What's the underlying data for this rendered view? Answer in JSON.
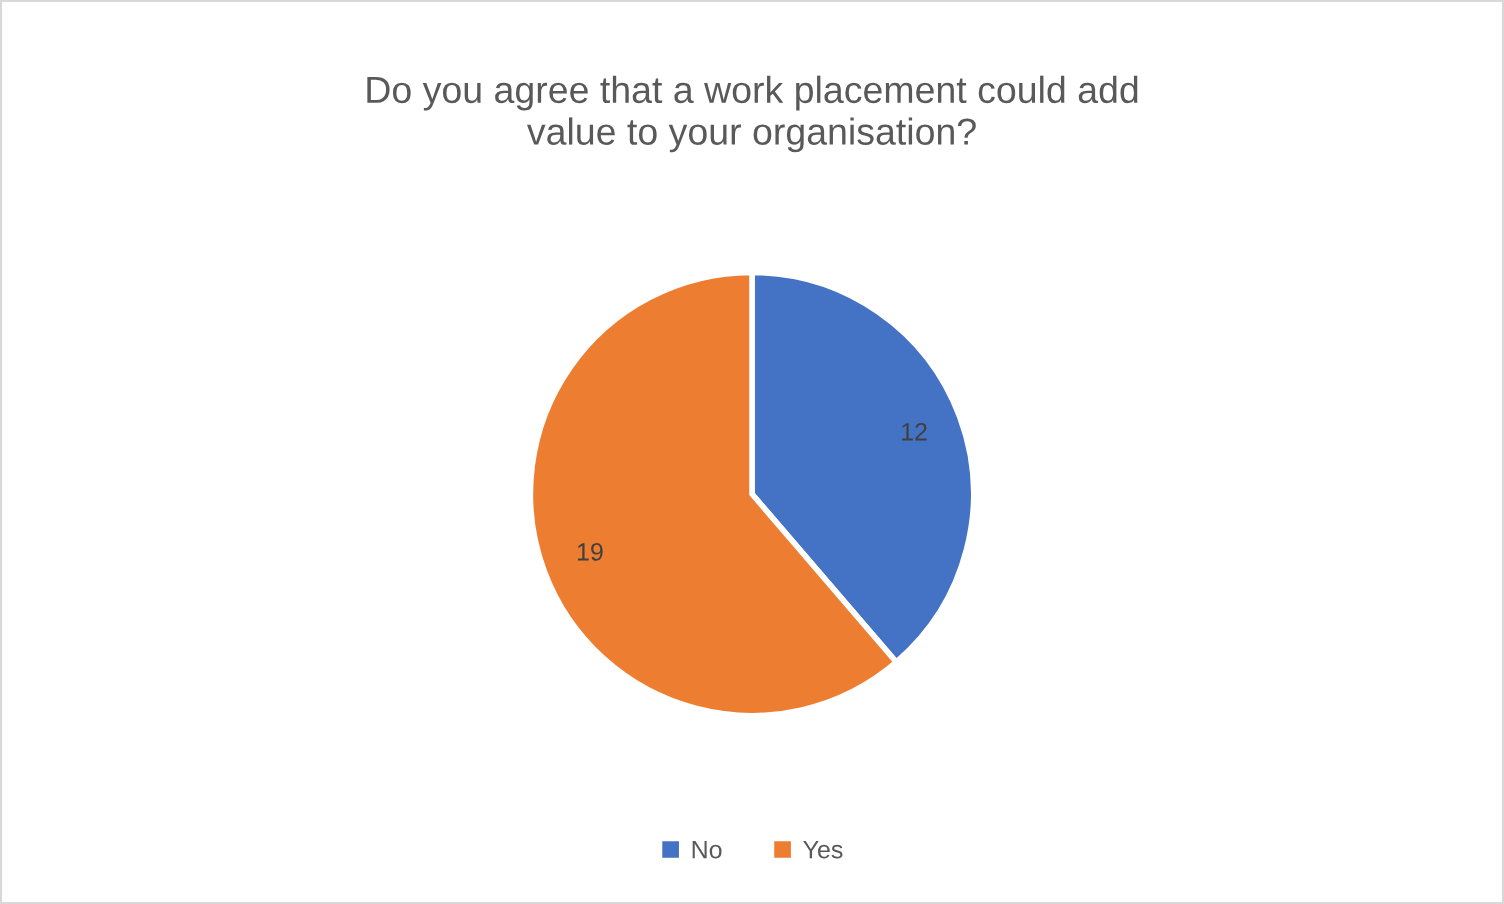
{
  "chart_data": {
    "type": "pie",
    "title": "Do you agree that a work placement could add\nvalue to your organisation?",
    "categories": [
      "No",
      "Yes"
    ],
    "values": [
      12,
      19
    ],
    "colors": [
      "#4472c4",
      "#ed7d31"
    ],
    "data_labels": true,
    "legend": "bottom"
  }
}
